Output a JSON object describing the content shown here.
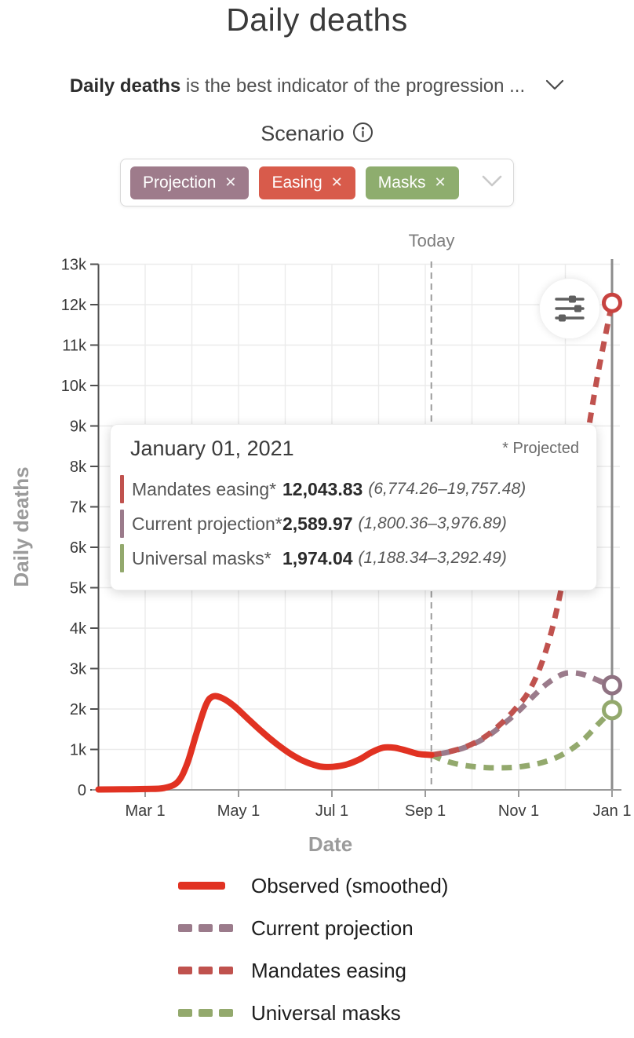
{
  "page": {
    "title": "Daily deaths"
  },
  "description": {
    "bold_part": "Daily deaths",
    "rest": " is the best indicator of the progression ..."
  },
  "scenario": {
    "label": "Scenario",
    "remove_icon": "✕",
    "chips": [
      {
        "label": "Projection",
        "color": "#9e7b8b"
      },
      {
        "label": "Easing",
        "color": "#d85b4b"
      },
      {
        "label": "Masks",
        "color": "#8ead6e"
      }
    ]
  },
  "tooltip": {
    "date": "January 01, 2021",
    "projected_note": "* Projected",
    "rows": [
      {
        "label": "Mandates easing*",
        "value": "12,043.83",
        "range": "(6,774.26–19,757.48)",
        "color": "#c0524e"
      },
      {
        "label": "Current projection*",
        "value": "2,589.97",
        "range": "(1,800.36–3,976.89)",
        "color": "#9b7b8b"
      },
      {
        "label": "Universal masks*",
        "value": "1,974.04",
        "range": "(1,188.34–3,292.49)",
        "color": "#93a96d"
      }
    ]
  },
  "legend": {
    "items": [
      {
        "label": "Observed (smoothed)",
        "color": "#e13222",
        "style": "solid"
      },
      {
        "label": "Current projection",
        "color": "#9b7b8b",
        "style": "dashed"
      },
      {
        "label": "Mandates easing",
        "color": "#c0524e",
        "style": "dashed"
      },
      {
        "label": "Universal masks",
        "color": "#93a96d",
        "style": "dashed"
      }
    ]
  },
  "chart_data": {
    "type": "line",
    "title": "Daily deaths",
    "xlabel": "Date",
    "ylabel": "Daily deaths",
    "today_label": "Today",
    "today_x": 7.13,
    "x_unit": "months since Feb 1, 2020",
    "x_domain": [
      "Feb 1, 2020",
      "Jan 1, 2021"
    ],
    "ylim": [
      0,
      13000
    ],
    "grid": true,
    "x_ticks": [
      "Mar 1",
      "May 1",
      "Jul 1",
      "Sep 1",
      "Nov 1",
      "Jan 1"
    ],
    "x_tick_pos": [
      1,
      3,
      5,
      7,
      9,
      11
    ],
    "y_ticks": [
      "0",
      "1k",
      "2k",
      "3k",
      "4k",
      "5k",
      "6k",
      "7k",
      "8k",
      "9k",
      "10k",
      "11k",
      "12k",
      "13k"
    ],
    "series": [
      {
        "name": "Universal masks",
        "color": "#93a96d",
        "marker_color": "#93a96d",
        "dash": true,
        "end_marker": true,
        "end_value": 1974.04,
        "points": [
          [
            7.13,
            865
          ],
          [
            7.4,
            730
          ],
          [
            7.7,
            635
          ],
          [
            8.0,
            580
          ],
          [
            8.3,
            552
          ],
          [
            8.6,
            545
          ],
          [
            8.9,
            558
          ],
          [
            9.2,
            600
          ],
          [
            9.5,
            675
          ],
          [
            9.8,
            795
          ],
          [
            10.1,
            985
          ],
          [
            10.4,
            1255
          ],
          [
            10.7,
            1620
          ],
          [
            11,
            1974.04
          ]
        ]
      },
      {
        "name": "Current projection",
        "color": "#9b7b8b",
        "marker_color": "#8f7282",
        "dash": true,
        "dash_offset": 12,
        "end_marker": true,
        "end_value": 2589.97,
        "points": [
          [
            7.13,
            865
          ],
          [
            7.5,
            935
          ],
          [
            7.9,
            1070
          ],
          [
            8.3,
            1300
          ],
          [
            8.7,
            1650
          ],
          [
            9.0,
            1950
          ],
          [
            9.3,
            2300
          ],
          [
            9.6,
            2620
          ],
          [
            9.9,
            2840
          ],
          [
            10.1,
            2895
          ],
          [
            10.35,
            2865
          ],
          [
            10.6,
            2760
          ],
          [
            10.8,
            2660
          ],
          [
            11,
            2589.97
          ]
        ]
      },
      {
        "name": "Mandates easing",
        "color": "#c0524e",
        "marker_color": "#c84340",
        "dash": true,
        "end_marker": true,
        "end_value": 12043.83,
        "points": [
          [
            7.13,
            865
          ],
          [
            7.5,
            940
          ],
          [
            7.9,
            1080
          ],
          [
            8.3,
            1330
          ],
          [
            8.7,
            1720
          ],
          [
            9.0,
            2100
          ],
          [
            9.2,
            2400
          ],
          [
            9.45,
            3000
          ],
          [
            9.7,
            3900
          ],
          [
            9.95,
            5200
          ],
          [
            10.2,
            6900
          ],
          [
            10.45,
            8600
          ],
          [
            10.7,
            10300
          ],
          [
            11,
            12043.83
          ]
        ]
      },
      {
        "name": "Observed (smoothed)",
        "color": "#e13222",
        "dash": false,
        "end_marker": false,
        "points": [
          [
            0,
            10
          ],
          [
            0.5,
            13
          ],
          [
            1,
            22
          ],
          [
            1.4,
            45
          ],
          [
            1.7,
            200
          ],
          [
            1.9,
            650
          ],
          [
            2.1,
            1400
          ],
          [
            2.3,
            2100
          ],
          [
            2.45,
            2310
          ],
          [
            2.65,
            2270
          ],
          [
            2.9,
            2080
          ],
          [
            3.2,
            1760
          ],
          [
            3.5,
            1440
          ],
          [
            3.8,
            1150
          ],
          [
            4.1,
            900
          ],
          [
            4.4,
            710
          ],
          [
            4.7,
            590
          ],
          [
            4.9,
            565
          ],
          [
            5.1,
            580
          ],
          [
            5.35,
            640
          ],
          [
            5.6,
            760
          ],
          [
            5.85,
            930
          ],
          [
            6.1,
            1045
          ],
          [
            6.35,
            1040
          ],
          [
            6.6,
            970
          ],
          [
            6.85,
            890
          ],
          [
            7.13,
            865
          ]
        ]
      }
    ]
  }
}
